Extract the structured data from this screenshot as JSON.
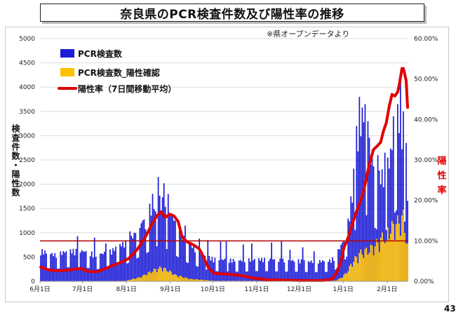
{
  "title": "奈良県のPCR検査件数及び陽性率の推移",
  "source_note": "※県オープンデータより",
  "page_number": "43",
  "chart_data": {
    "type": "bar",
    "ylabel_left": "検査件数・陽性数",
    "ylabel_right": "陽性率",
    "y_left_ticks": [
      "0",
      "500",
      "1000",
      "1500",
      "2000",
      "2500",
      "3000",
      "3500",
      "4000",
      "4500",
      "5000"
    ],
    "y_right_ticks": [
      "0.00%",
      "10.00%",
      "20.00%",
      "30.00%",
      "40.00%",
      "50.00%",
      "60.00%"
    ],
    "ylim_left": [
      0,
      5000
    ],
    "ylim_right": [
      0,
      60
    ],
    "x_tick_labels": [
      "6月1日",
      "7月1日",
      "8月1日",
      "9月1日",
      "10月1日",
      "11月1日",
      "12月1日",
      "1月1日",
      "2月1日"
    ],
    "x_tick_day_index": [
      0,
      30,
      61,
      92,
      122,
      153,
      183,
      214,
      245
    ],
    "num_days": 260,
    "reference_line_pct": 10,
    "legend": {
      "tests": "PCR検査数",
      "positives": "PCR検査数_陽性確認",
      "rate": "陽性率（7日間移動平均）"
    },
    "colors": {
      "tests": "#1c1cd6",
      "positives": "#ffc000",
      "rate": "#e00000",
      "reference": "#b40000",
      "grid": "#dddddd"
    },
    "tests_anchors": [
      [
        0,
        650
      ],
      [
        10,
        560
      ],
      [
        20,
        650
      ],
      [
        30,
        640
      ],
      [
        40,
        560
      ],
      [
        50,
        640
      ],
      [
        55,
        760
      ],
      [
        61,
        820
      ],
      [
        68,
        1050
      ],
      [
        75,
        1300
      ],
      [
        80,
        1500
      ],
      [
        85,
        1750
      ],
      [
        88,
        1500
      ],
      [
        92,
        1400
      ],
      [
        96,
        1150
      ],
      [
        100,
        950
      ],
      [
        105,
        820
      ],
      [
        110,
        700
      ],
      [
        115,
        560
      ],
      [
        122,
        470
      ],
      [
        130,
        460
      ],
      [
        140,
        440
      ],
      [
        153,
        470
      ],
      [
        165,
        460
      ],
      [
        175,
        440
      ],
      [
        183,
        440
      ],
      [
        190,
        420
      ],
      [
        200,
        430
      ],
      [
        205,
        440
      ],
      [
        208,
        540
      ],
      [
        212,
        760
      ],
      [
        214,
        880
      ],
      [
        217,
        1250
      ],
      [
        220,
        1900
      ],
      [
        224,
        2800
      ],
      [
        228,
        3200
      ],
      [
        232,
        2850
      ],
      [
        236,
        2450
      ],
      [
        240,
        2200
      ],
      [
        244,
        2350
      ],
      [
        247,
        2700
      ],
      [
        250,
        3150
      ],
      [
        253,
        3450
      ],
      [
        256,
        3200
      ],
      [
        259,
        1800
      ]
    ],
    "tests_peaks": [
      [
        26,
        930
      ],
      [
        38,
        900
      ],
      [
        46,
        780
      ],
      [
        63,
        1030
      ],
      [
        66,
        1000
      ],
      [
        70,
        1100
      ],
      [
        72,
        1250
      ],
      [
        77,
        1600
      ],
      [
        79,
        1800
      ],
      [
        83,
        2150
      ],
      [
        87,
        2020
      ],
      [
        90,
        1800
      ],
      [
        94,
        1250
      ],
      [
        98,
        1200
      ],
      [
        102,
        1150
      ],
      [
        112,
        880
      ],
      [
        118,
        850
      ],
      [
        127,
        820
      ],
      [
        131,
        820
      ],
      [
        143,
        760
      ],
      [
        149,
        780
      ],
      [
        163,
        800
      ],
      [
        170,
        820
      ],
      [
        176,
        650
      ],
      [
        185,
        700
      ],
      [
        193,
        620
      ],
      [
        221,
        2320
      ],
      [
        223,
        3200
      ],
      [
        225,
        3800
      ],
      [
        227,
        3580
      ],
      [
        229,
        3650
      ],
      [
        231,
        3300
      ],
      [
        238,
        2600
      ],
      [
        243,
        2650
      ],
      [
        249,
        3400
      ],
      [
        252,
        3650
      ],
      [
        254,
        4150
      ],
      [
        256,
        3500
      ],
      [
        258,
        2850
      ]
    ],
    "positives_anchors": [
      [
        0,
        5
      ],
      [
        60,
        10
      ],
      [
        70,
        80
      ],
      [
        80,
        230
      ],
      [
        85,
        280
      ],
      [
        90,
        220
      ],
      [
        95,
        130
      ],
      [
        105,
        50
      ],
      [
        122,
        12
      ],
      [
        183,
        6
      ],
      [
        200,
        8
      ],
      [
        208,
        15
      ],
      [
        212,
        70
      ],
      [
        216,
        180
      ],
      [
        220,
        380
      ],
      [
        225,
        560
      ],
      [
        230,
        620
      ],
      [
        235,
        700
      ],
      [
        240,
        850
      ],
      [
        245,
        1000
      ],
      [
        250,
        1150
      ],
      [
        253,
        1200
      ],
      [
        256,
        1300
      ],
      [
        259,
        700
      ]
    ],
    "rate_anchors": [
      [
        0,
        3.5
      ],
      [
        6,
        2.8
      ],
      [
        12,
        2.6
      ],
      [
        20,
        2.8
      ],
      [
        28,
        3.2
      ],
      [
        34,
        2.4
      ],
      [
        40,
        2.4
      ],
      [
        46,
        3.2
      ],
      [
        50,
        3.8
      ],
      [
        56,
        4.6
      ],
      [
        62,
        5.6
      ],
      [
        68,
        7.8
      ],
      [
        74,
        11.0
      ],
      [
        78,
        13.8
      ],
      [
        82,
        16.2
      ],
      [
        85,
        17.2
      ],
      [
        88,
        15.8
      ],
      [
        91,
        16.6
      ],
      [
        94,
        16.2
      ],
      [
        97,
        14.8
      ],
      [
        100,
        10.8
      ],
      [
        104,
        9.6
      ],
      [
        108,
        9.0
      ],
      [
        112,
        8.0
      ],
      [
        115,
        6.0
      ],
      [
        118,
        3.6
      ],
      [
        122,
        2.0
      ],
      [
        130,
        1.8
      ],
      [
        138,
        1.6
      ],
      [
        145,
        1.2
      ],
      [
        150,
        0.8
      ],
      [
        160,
        0.4
      ],
      [
        183,
        0.2
      ],
      [
        200,
        0.2
      ],
      [
        206,
        0.6
      ],
      [
        209,
        2.2
      ],
      [
        212,
        5.0
      ],
      [
        214,
        8.2
      ],
      [
        217,
        10.8
      ],
      [
        220,
        14.2
      ],
      [
        223,
        17.4
      ],
      [
        225,
        19.2
      ],
      [
        228,
        22.4
      ],
      [
        232,
        29.0
      ],
      [
        235,
        32.6
      ],
      [
        238,
        33.6
      ],
      [
        240,
        34.4
      ],
      [
        242,
        37.2
      ],
      [
        244,
        39.2
      ],
      [
        246,
        43.2
      ],
      [
        248,
        46.2
      ],
      [
        250,
        45.8
      ],
      [
        252,
        46.8
      ],
      [
        253,
        48.4
      ],
      [
        254,
        50.4
      ],
      [
        255,
        52.6
      ],
      [
        256,
        52.6
      ],
      [
        257,
        51.2
      ],
      [
        258,
        49.6
      ],
      [
        259,
        43.0
      ]
    ]
  }
}
